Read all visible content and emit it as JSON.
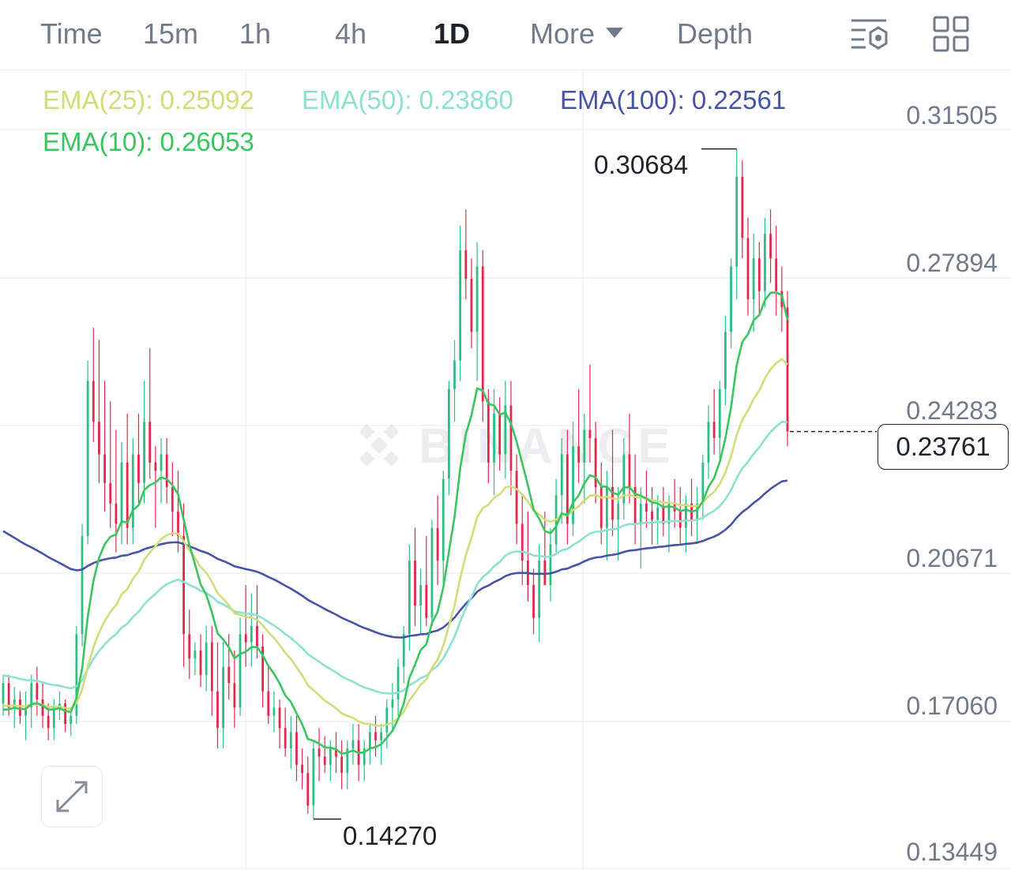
{
  "timeframe_tabs": [
    {
      "label": "Time",
      "active": false
    },
    {
      "label": "15m",
      "active": false
    },
    {
      "label": "1h",
      "active": false
    },
    {
      "label": "4h",
      "active": false
    },
    {
      "label": "1D",
      "active": true
    }
  ],
  "more_label": "More",
  "depth_label": "Depth",
  "icons": {
    "indicator_settings": "indicator-settings-icon",
    "layout_grid": "grid-icon",
    "expand": "expand-icon",
    "watermark": "binance-logo"
  },
  "watermark_text": "BINANCE",
  "colors": {
    "up": "#2ebd85",
    "down": "#e0294a",
    "ema10": "#3cc462",
    "ema25": "#d2dc7a",
    "ema50": "#8ee0cf",
    "ema100": "#4654a8"
  },
  "chart_data": {
    "type": "candlestick",
    "interval": "1D",
    "y_ticks": [
      "0.31505",
      "0.27894",
      "0.24283",
      "0.20671",
      "0.17060",
      "0.13449"
    ],
    "ylim": [
      0.13449,
      0.31505
    ],
    "current_price": "0.23761",
    "high_marker": "0.30684",
    "low_marker": "0.14270",
    "indicators": [
      {
        "name": "EMA(25)",
        "value": "0.25092",
        "color": "#d2dc7a"
      },
      {
        "name": "EMA(50)",
        "value": "0.23860",
        "color": "#8ee0cf"
      },
      {
        "name": "EMA(100)",
        "value": "0.22561",
        "color": "#4654a8"
      },
      {
        "name": "EMA(10)",
        "value": "0.26053",
        "color": "#3cc462"
      }
    ],
    "candles_ohlc": [
      [
        0.171,
        0.178,
        0.168,
        0.176
      ],
      [
        0.176,
        0.178,
        0.168,
        0.17
      ],
      [
        0.17,
        0.175,
        0.165,
        0.172
      ],
      [
        0.172,
        0.174,
        0.166,
        0.168
      ],
      [
        0.168,
        0.174,
        0.162,
        0.17
      ],
      [
        0.17,
        0.178,
        0.165,
        0.176
      ],
      [
        0.176,
        0.18,
        0.168,
        0.172
      ],
      [
        0.172,
        0.176,
        0.165,
        0.168
      ],
      [
        0.168,
        0.171,
        0.162,
        0.165
      ],
      [
        0.165,
        0.172,
        0.162,
        0.17
      ],
      [
        0.17,
        0.174,
        0.167,
        0.171
      ],
      [
        0.171,
        0.172,
        0.164,
        0.166
      ],
      [
        0.166,
        0.17,
        0.163,
        0.168
      ],
      [
        0.168,
        0.19,
        0.166,
        0.188
      ],
      [
        0.188,
        0.215,
        0.185,
        0.212
      ],
      [
        0.212,
        0.255,
        0.21,
        0.25
      ],
      [
        0.25,
        0.263,
        0.235,
        0.24
      ],
      [
        0.24,
        0.26,
        0.225,
        0.232
      ],
      [
        0.232,
        0.25,
        0.218,
        0.225
      ],
      [
        0.225,
        0.245,
        0.214,
        0.22
      ],
      [
        0.22,
        0.238,
        0.208,
        0.215
      ],
      [
        0.215,
        0.235,
        0.21,
        0.23
      ],
      [
        0.23,
        0.242,
        0.21,
        0.214
      ],
      [
        0.214,
        0.236,
        0.21,
        0.232
      ],
      [
        0.232,
        0.242,
        0.22,
        0.225
      ],
      [
        0.225,
        0.25,
        0.22,
        0.24
      ],
      [
        0.24,
        0.258,
        0.226,
        0.23
      ],
      [
        0.23,
        0.234,
        0.214,
        0.228
      ],
      [
        0.228,
        0.236,
        0.22,
        0.232
      ],
      [
        0.232,
        0.236,
        0.22,
        0.224
      ],
      [
        0.224,
        0.23,
        0.212,
        0.218
      ],
      [
        0.218,
        0.228,
        0.208,
        0.212
      ],
      [
        0.212,
        0.22,
        0.18,
        0.188
      ],
      [
        0.188,
        0.194,
        0.177,
        0.182
      ],
      [
        0.182,
        0.186,
        0.178,
        0.184
      ],
      [
        0.184,
        0.188,
        0.175,
        0.178
      ],
      [
        0.178,
        0.19,
        0.174,
        0.186
      ],
      [
        0.186,
        0.19,
        0.168,
        0.174
      ],
      [
        0.174,
        0.186,
        0.16,
        0.165
      ],
      [
        0.165,
        0.186,
        0.16,
        0.18
      ],
      [
        0.18,
        0.188,
        0.172,
        0.176
      ],
      [
        0.176,
        0.184,
        0.165,
        0.17
      ],
      [
        0.17,
        0.192,
        0.168,
        0.188
      ],
      [
        0.188,
        0.2,
        0.18,
        0.186
      ],
      [
        0.186,
        0.198,
        0.18,
        0.19
      ],
      [
        0.19,
        0.2,
        0.182,
        0.185
      ],
      [
        0.185,
        0.188,
        0.17,
        0.174
      ],
      [
        0.174,
        0.18,
        0.166,
        0.168
      ],
      [
        0.168,
        0.174,
        0.164,
        0.17
      ],
      [
        0.17,
        0.172,
        0.16,
        0.165
      ],
      [
        0.165,
        0.17,
        0.158,
        0.16
      ],
      [
        0.16,
        0.168,
        0.155,
        0.164
      ],
      [
        0.164,
        0.168,
        0.152,
        0.156
      ],
      [
        0.156,
        0.16,
        0.15,
        0.154
      ],
      [
        0.154,
        0.158,
        0.144,
        0.146
      ],
      [
        0.146,
        0.162,
        0.1427,
        0.16
      ],
      [
        0.16,
        0.165,
        0.152,
        0.158
      ],
      [
        0.158,
        0.163,
        0.154,
        0.156
      ],
      [
        0.156,
        0.162,
        0.152,
        0.16
      ],
      [
        0.16,
        0.164,
        0.154,
        0.158
      ],
      [
        0.158,
        0.162,
        0.15,
        0.154
      ],
      [
        0.154,
        0.162,
        0.15,
        0.16
      ],
      [
        0.16,
        0.166,
        0.156,
        0.162
      ],
      [
        0.162,
        0.166,
        0.152,
        0.156
      ],
      [
        0.156,
        0.162,
        0.152,
        0.16
      ],
      [
        0.16,
        0.166,
        0.156,
        0.164
      ],
      [
        0.164,
        0.168,
        0.158,
        0.162
      ],
      [
        0.162,
        0.166,
        0.156,
        0.164
      ],
      [
        0.164,
        0.172,
        0.16,
        0.17
      ],
      [
        0.17,
        0.176,
        0.164,
        0.172
      ],
      [
        0.172,
        0.182,
        0.168,
        0.18
      ],
      [
        0.18,
        0.19,
        0.176,
        0.188
      ],
      [
        0.188,
        0.21,
        0.184,
        0.206
      ],
      [
        0.206,
        0.214,
        0.19,
        0.195
      ],
      [
        0.195,
        0.204,
        0.188,
        0.2
      ],
      [
        0.2,
        0.212,
        0.19,
        0.192
      ],
      [
        0.192,
        0.216,
        0.19,
        0.214
      ],
      [
        0.214,
        0.222,
        0.2,
        0.206
      ],
      [
        0.206,
        0.228,
        0.2,
        0.226
      ],
      [
        0.226,
        0.25,
        0.222,
        0.248
      ],
      [
        0.248,
        0.26,
        0.24,
        0.255
      ],
      [
        0.255,
        0.288,
        0.25,
        0.282
      ],
      [
        0.282,
        0.292,
        0.27,
        0.275
      ],
      [
        0.275,
        0.28,
        0.258,
        0.262
      ],
      [
        0.262,
        0.284,
        0.25,
        0.278
      ],
      [
        0.278,
        0.282,
        0.24,
        0.245
      ],
      [
        0.245,
        0.248,
        0.225,
        0.23
      ],
      [
        0.23,
        0.248,
        0.222,
        0.242
      ],
      [
        0.242,
        0.246,
        0.228,
        0.232
      ],
      [
        0.232,
        0.25,
        0.226,
        0.244
      ],
      [
        0.244,
        0.25,
        0.222,
        0.228
      ],
      [
        0.228,
        0.232,
        0.21,
        0.215
      ],
      [
        0.215,
        0.222,
        0.2,
        0.206
      ],
      [
        0.206,
        0.218,
        0.196,
        0.2
      ],
      [
        0.2,
        0.204,
        0.188,
        0.192
      ],
      [
        0.192,
        0.21,
        0.186,
        0.206
      ],
      [
        0.206,
        0.218,
        0.2,
        0.2
      ],
      [
        0.2,
        0.214,
        0.196,
        0.21
      ],
      [
        0.21,
        0.226,
        0.208,
        0.222
      ],
      [
        0.222,
        0.236,
        0.215,
        0.232
      ],
      [
        0.232,
        0.238,
        0.21,
        0.215
      ],
      [
        0.215,
        0.24,
        0.212,
        0.234
      ],
      [
        0.234,
        0.248,
        0.225,
        0.23
      ],
      [
        0.23,
        0.242,
        0.22,
        0.238
      ],
      [
        0.238,
        0.254,
        0.23,
        0.236
      ],
      [
        0.236,
        0.24,
        0.22,
        0.224
      ],
      [
        0.224,
        0.23,
        0.21,
        0.214
      ],
      [
        0.214,
        0.228,
        0.206,
        0.224
      ],
      [
        0.224,
        0.238,
        0.212,
        0.216
      ],
      [
        0.216,
        0.224,
        0.206,
        0.22
      ],
      [
        0.22,
        0.236,
        0.216,
        0.232
      ],
      [
        0.232,
        0.242,
        0.22,
        0.224
      ],
      [
        0.224,
        0.232,
        0.21,
        0.215
      ],
      [
        0.215,
        0.224,
        0.204,
        0.22
      ],
      [
        0.22,
        0.228,
        0.214,
        0.218
      ],
      [
        0.218,
        0.224,
        0.21,
        0.216
      ],
      [
        0.216,
        0.222,
        0.21,
        0.219
      ],
      [
        0.219,
        0.224,
        0.212,
        0.215
      ],
      [
        0.215,
        0.222,
        0.208,
        0.22
      ],
      [
        0.22,
        0.226,
        0.214,
        0.218
      ],
      [
        0.218,
        0.224,
        0.21,
        0.214
      ],
      [
        0.214,
        0.222,
        0.208,
        0.22
      ],
      [
        0.22,
        0.226,
        0.212,
        0.216
      ],
      [
        0.216,
        0.224,
        0.21,
        0.22
      ],
      [
        0.22,
        0.232,
        0.216,
        0.23
      ],
      [
        0.23,
        0.244,
        0.226,
        0.24
      ],
      [
        0.24,
        0.248,
        0.232,
        0.236
      ],
      [
        0.236,
        0.25,
        0.23,
        0.248
      ],
      [
        0.248,
        0.266,
        0.244,
        0.262
      ],
      [
        0.262,
        0.28,
        0.258,
        0.278
      ],
      [
        0.278,
        0.3068,
        0.27,
        0.3
      ],
      [
        0.3,
        0.304,
        0.28,
        0.285
      ],
      [
        0.285,
        0.29,
        0.266,
        0.27
      ],
      [
        0.27,
        0.286,
        0.262,
        0.28
      ],
      [
        0.28,
        0.284,
        0.266,
        0.272
      ],
      [
        0.272,
        0.29,
        0.268,
        0.286
      ],
      [
        0.286,
        0.292,
        0.274,
        0.28
      ],
      [
        0.28,
        0.288,
        0.266,
        0.272
      ],
      [
        0.272,
        0.278,
        0.262,
        0.268
      ],
      [
        0.268,
        0.272,
        0.234,
        0.2376
      ]
    ]
  }
}
